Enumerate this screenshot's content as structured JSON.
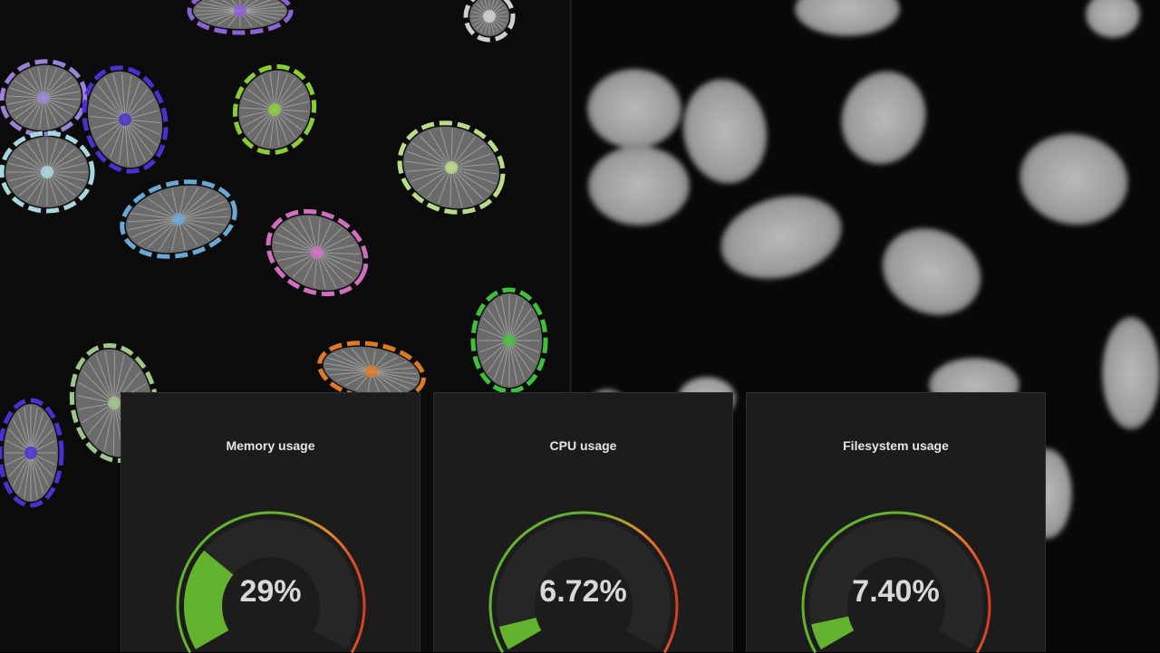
{
  "background": {
    "left_tile": "segmented-nuclei-microscopy",
    "right_tile": "raw-nuclei-microscopy"
  },
  "colors": {
    "panel_bg": "#1c1c1c",
    "gauge_track": "#262626",
    "gauge_green": "#63b32e",
    "gauge_orange": "#e88a2a",
    "gauge_red": "#d63c25",
    "value_text": "#d8d8d8"
  },
  "panels": [
    {
      "title": "Memory usage",
      "value_text": "29%",
      "fraction": 0.29
    },
    {
      "title": "CPU usage",
      "value_text": "6.72%",
      "fraction": 0.0672
    },
    {
      "title": "Filesystem usage",
      "value_text": "7.40%",
      "fraction": 0.074
    }
  ]
}
